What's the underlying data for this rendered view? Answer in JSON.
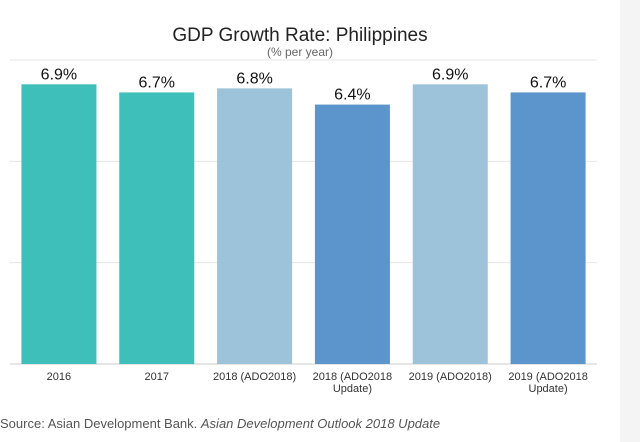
{
  "chart_data": {
    "type": "bar",
    "title": "GDP Growth Rate: Philippines",
    "subtitle": "(% per year)",
    "categories": [
      "2016",
      "2017",
      "2018 (ADO2018)",
      "2018 (ADO2018 Update)",
      "2019 (ADO2018)",
      "2019 (ADO2018 Update)"
    ],
    "tick_labels": [
      [
        "2016"
      ],
      [
        "2017"
      ],
      [
        "2018 (ADO2018)"
      ],
      [
        "2018 (ADO2018",
        "Update)"
      ],
      [
        "2019 (ADO2018)"
      ],
      [
        "2019 (ADO2018",
        "Update)"
      ]
    ],
    "values": [
      6.9,
      6.7,
      6.8,
      6.4,
      6.9,
      6.7
    ],
    "value_labels": [
      "6.9%",
      "6.7%",
      "6.8%",
      "6.4%",
      "6.9%",
      "6.7%"
    ],
    "bar_colors": [
      "#3fbfb9",
      "#3fbfb9",
      "#9cc3da",
      "#5b95cb",
      "#9cc3da",
      "#5b95cb"
    ],
    "xlabel": "",
    "ylabel": "",
    "ylim": [
      0,
      7.5
    ],
    "grid": true,
    "legend": "none"
  },
  "footer": {
    "source_prefix": "Source: Asian Development Bank. ",
    "source_publication": "Asian Development Outlook 2018 Update"
  },
  "colors": {
    "gridline": "#e6e6e6",
    "axis": "#cccccc"
  }
}
